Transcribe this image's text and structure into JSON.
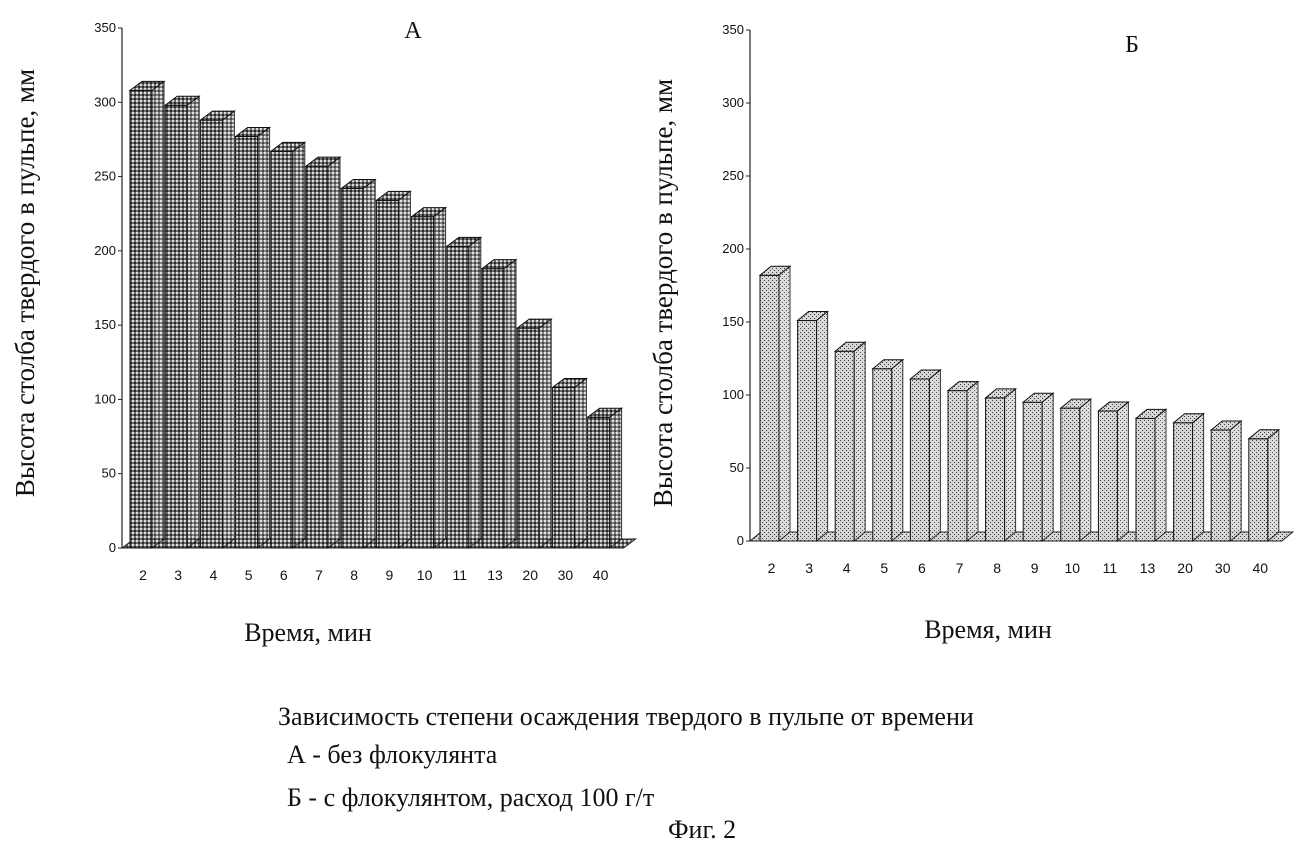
{
  "caption": {
    "line1": "Зависимость степени осаждения твердого в пульпе от времени",
    "line2": "А - без флокулянта",
    "line3": "Б - с  флокулянтом, расход 100 г/т",
    "fig": "Фиг.  2"
  },
  "chart_data": [
    {
      "type": "bar",
      "panel_label": "А",
      "ylabel": "Высота столба твердого в пульпе, мм",
      "xlabel": "Время, мин",
      "ylim": [
        0,
        350
      ],
      "yticks": [
        "0",
        "50",
        "100",
        "150",
        "200",
        "250",
        "300",
        "350"
      ],
      "categories": [
        "2",
        "3",
        "4",
        "5",
        "6",
        "7",
        "8",
        "9",
        "10",
        "11",
        "13",
        "20",
        "30",
        "40"
      ],
      "values": [
        308,
        298,
        288,
        277,
        267,
        257,
        242,
        234,
        223,
        203,
        188,
        148,
        108,
        88
      ],
      "grid": false,
      "colors": {
        "bar_fill": "#8a8a8a",
        "bar_top": "#bdbdbd",
        "bar_side": "#5a5a5a"
      }
    },
    {
      "type": "bar",
      "panel_label": "Б",
      "ylabel": "Высота столба твердого в пульпе, мм",
      "xlabel": "Время, мин",
      "ylim": [
        0,
        350
      ],
      "yticks": [
        "0",
        "50",
        "100",
        "150",
        "200",
        "250",
        "300",
        "350"
      ],
      "categories": [
        "2",
        "3",
        "4",
        "5",
        "6",
        "7",
        "8",
        "9",
        "10",
        "11",
        "13",
        "20",
        "30",
        "40"
      ],
      "values": [
        182,
        151,
        130,
        118,
        111,
        103,
        98,
        95,
        91,
        89,
        84,
        81,
        76,
        70
      ],
      "grid": false,
      "colors": {
        "bar_fill": "#cfcfcf",
        "bar_top": "#e6e6e6",
        "bar_side": "#9a9a9a"
      }
    }
  ]
}
